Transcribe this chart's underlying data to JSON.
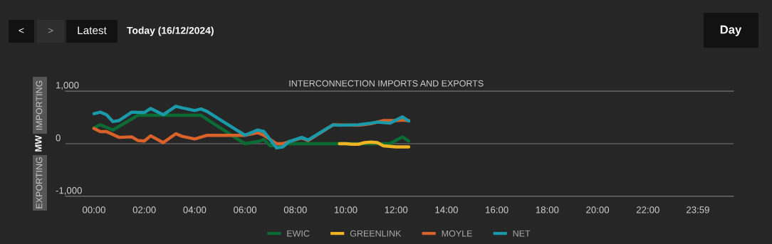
{
  "chart_data": {
    "type": "line",
    "title": "INTERCONNECTION IMPORTS AND EXPORTS",
    "ylabel": "MW",
    "annotations": [
      "<",
      ">",
      "Latest",
      "Today (16/12/2024)",
      "Day",
      "IMPORTING",
      "EXPORTING"
    ],
    "xlim": [
      -1.13,
      25.4
    ],
    "xticks": [
      {
        "value": 0,
        "label": "00:00"
      },
      {
        "value": 2,
        "label": "02:00"
      },
      {
        "value": 4,
        "label": "04:00"
      },
      {
        "value": 6,
        "label": "06:00"
      },
      {
        "value": 8,
        "label": "08:00"
      },
      {
        "value": 10,
        "label": "10:00"
      },
      {
        "value": 12,
        "label": "12:00"
      },
      {
        "value": 14,
        "label": "14:00"
      },
      {
        "value": 16,
        "label": "16:00"
      },
      {
        "value": 18,
        "label": "18:00"
      },
      {
        "value": 20,
        "label": "20:00"
      },
      {
        "value": 22,
        "label": "22:00"
      },
      {
        "value": 23.983,
        "label": "23:59"
      }
    ],
    "ylim": [
      -1000,
      1000
    ],
    "yticks": [
      {
        "value": -1000,
        "label": "-1,000"
      },
      0,
      {
        "value": 1000,
        "label": "1,000"
      }
    ],
    "grid": "y",
    "legend": "bottom",
    "marker": "none",
    "line_style": "solid",
    "series": [
      {
        "name": "EWIC",
        "color": "#0b6b35",
        "x": [
          0,
          0.25,
          0.75,
          1.75,
          4.25,
          5.6,
          6,
          6.5,
          6.75,
          7,
          7.5,
          9.75,
          10,
          10.5,
          11,
          11.5,
          11.75,
          12.25,
          12.5
        ],
        "values": [
          300,
          360,
          260,
          540,
          540,
          120,
          0,
          40,
          80,
          -40,
          0,
          0,
          0,
          0,
          0,
          0,
          0,
          130,
          50
        ]
      },
      {
        "name": "GREENLINK",
        "color": "#f0b323",
        "x": [
          9.75,
          10,
          10.25,
          10.5,
          10.75,
          11,
          11.25,
          11.5,
          11.75,
          12,
          12.25,
          12.5
        ],
        "values": [
          0,
          0,
          -10,
          -10,
          20,
          30,
          20,
          -40,
          -50,
          -60,
          -60,
          -60
        ]
      },
      {
        "name": "MOYLE",
        "color": "#d9622b",
        "x": [
          0,
          0.25,
          0.5,
          1,
          1.5,
          1.75,
          2,
          2.25,
          2.75,
          3.25,
          3.5,
          4,
          4.5,
          6,
          6.5,
          6.75,
          7.25,
          7.5,
          7.75,
          8.25,
          8.5,
          9.5,
          10.5,
          11,
          11.5,
          11.75,
          12,
          12.25,
          12.5
        ],
        "values": [
          290,
          230,
          230,
          120,
          130,
          60,
          50,
          150,
          20,
          190,
          140,
          90,
          160,
          160,
          210,
          160,
          0,
          0,
          40,
          110,
          60,
          360,
          350,
          380,
          440,
          440,
          440,
          450,
          440
        ]
      },
      {
        "name": "NET",
        "color": "#1a9aa8",
        "x": [
          0,
          0.25,
          0.5,
          0.75,
          1,
          1.5,
          2,
          2.25,
          2.75,
          3.25,
          3.5,
          4,
          4.25,
          4.5,
          5.6,
          6,
          6.5,
          6.75,
          7.25,
          7.5,
          7.75,
          8.25,
          8.5,
          9.5,
          9.75,
          10.5,
          11,
          11.25,
          11.75,
          12.25,
          12.5
        ],
        "values": [
          570,
          600,
          550,
          420,
          440,
          600,
          590,
          670,
          550,
          710,
          680,
          630,
          660,
          610,
          280,
          160,
          260,
          230,
          -80,
          -60,
          40,
          120,
          70,
          360,
          350,
          360,
          390,
          410,
          390,
          510,
          430
        ]
      }
    ]
  }
}
